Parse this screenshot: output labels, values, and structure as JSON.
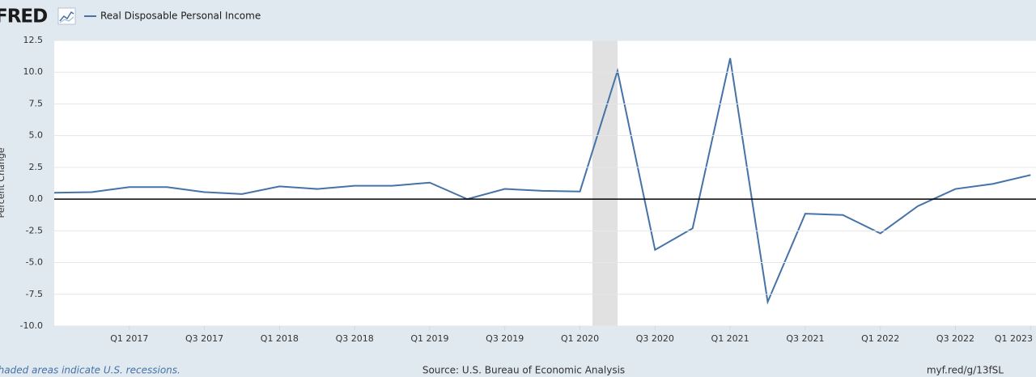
{
  "logo": "FRED",
  "chart_data": {
    "type": "line",
    "y_label": "Percent Change",
    "source": "Source: U.S. Bureau of Economic Analysis",
    "note": "Shaded areas indicate U.S. recessions.",
    "link": "myf.red/g/13fSL",
    "x": [
      2016.5,
      2016.75,
      2017.0,
      2017.25,
      2017.5,
      2017.75,
      2018.0,
      2018.25,
      2018.5,
      2018.75,
      2019.0,
      2019.25,
      2019.5,
      2019.75,
      2020.0,
      2020.25,
      2020.5,
      2020.75,
      2021.0,
      2021.25,
      2021.5,
      2021.75,
      2022.0,
      2022.25,
      2022.5,
      2022.75,
      2023.0
    ],
    "series": [
      {
        "name": "Real Disposable Personal Income",
        "color": "#4572a7",
        "values": [
          0.5,
          0.55,
          0.95,
          0.95,
          0.55,
          0.4,
          1.0,
          0.8,
          1.05,
          1.05,
          1.3,
          0.0,
          0.8,
          0.65,
          0.6,
          10.1,
          -4.0,
          -2.3,
          11.1,
          -8.1,
          -1.15,
          -1.25,
          -2.7,
          -0.55,
          0.8,
          1.2,
          1.9
        ]
      }
    ],
    "recessions": [
      [
        2020.083,
        2020.25
      ]
    ],
    "xlim": [
      2016.5,
      2023.02
    ],
    "xticks": [
      {
        "value": 2017.0,
        "label": "Q1 2017"
      },
      {
        "value": 2017.5,
        "label": "Q3 2017"
      },
      {
        "value": 2018.0,
        "label": "Q1 2018"
      },
      {
        "value": 2018.5,
        "label": "Q3 2018"
      },
      {
        "value": 2019.0,
        "label": "Q1 2019"
      },
      {
        "value": 2019.5,
        "label": "Q3 2019"
      },
      {
        "value": 2020.0,
        "label": "Q1 2020"
      },
      {
        "value": 2020.5,
        "label": "Q3 2020"
      },
      {
        "value": 2021.0,
        "label": "Q1 2021"
      },
      {
        "value": 2021.5,
        "label": "Q3 2021"
      },
      {
        "value": 2022.0,
        "label": "Q1 2022"
      },
      {
        "value": 2022.5,
        "label": "Q3 2022"
      },
      {
        "value": 2023.0,
        "label": "Q1 2023"
      }
    ],
    "ylim": [
      -10,
      12.5
    ],
    "yticks": [
      {
        "value": -10,
        "label": "-10.0"
      },
      -7.5,
      {
        "value": -5,
        "label": "-5.0"
      },
      -2.5,
      {
        "value": 0,
        "label": "0.0"
      },
      2.5,
      {
        "value": 5,
        "label": "5.0"
      },
      7.5,
      {
        "value": 10,
        "label": "10.0"
      },
      12.5
    ],
    "grid": true
  }
}
